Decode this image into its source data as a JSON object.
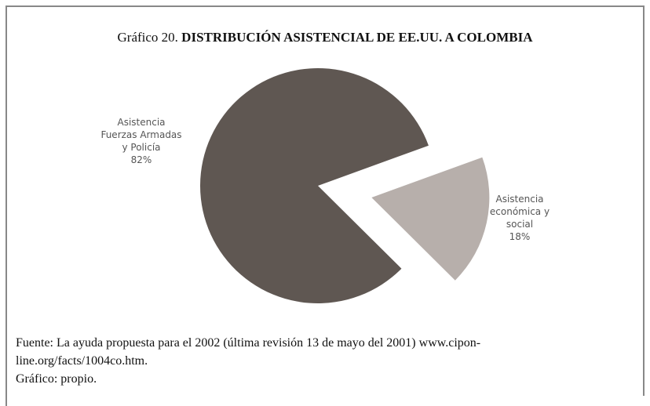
{
  "chart_data": {
    "type": "pie",
    "title_prefix": "Gráfico 20.",
    "title": "DISTRIBUCIÓN ASISTENCIAL DE EE.UU. A COLOMBIA",
    "categories": [
      [
        "Asistencia",
        "Fuerzas Armadas",
        "y Policía"
      ],
      [
        "Asistencia",
        "económica y",
        "social"
      ]
    ],
    "values": [
      82,
      18
    ],
    "value_labels": [
      "82%",
      "18%"
    ],
    "colors": [
      "#5f5752",
      "#b7afab"
    ],
    "exploded": [
      false,
      true
    ],
    "source": [
      "Fuente: La ayuda propuesta para el 2002 (última revisión 13 de mayo del 2001) www.cipon-",
      "line.org/facts/1004co.htm.",
      "Gráfico: propio."
    ]
  }
}
